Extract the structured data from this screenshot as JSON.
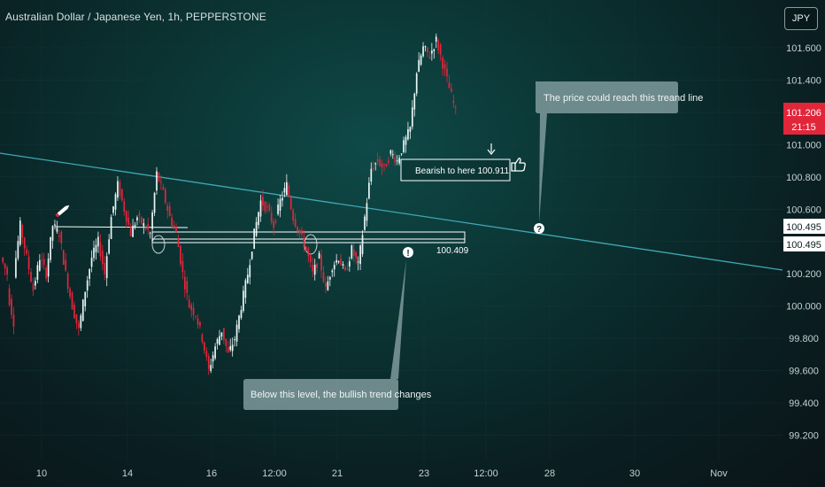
{
  "header": {
    "title": "Australian Dollar / Japanese Yen, 1h, PEPPERSTONE"
  },
  "currency_button": "JPY",
  "price_tag": {
    "price": "101.206",
    "countdown": "21:15",
    "color": "#e2263a"
  },
  "trendline_tags": [
    "100.495",
    "100.495"
  ],
  "annotations": {
    "target_label": "Bearish to here 100.911",
    "level_label": "100.409",
    "callout_top": "The price could reach this treand line",
    "callout_bottom": "Below this level, the bullish trend changes",
    "question_mark": "?",
    "info_mark": "!"
  },
  "colors": {
    "up": "#e8f4f4",
    "down": "#e2263a",
    "trendline": "#3fa8b4",
    "grid": "#1d3d40"
  },
  "icons": [
    "pencil-icon",
    "thumbs-up-icon",
    "down-arrow-icon",
    "info-icon",
    "question-icon"
  ],
  "chart_data": {
    "type": "candlestick",
    "y_axis": {
      "ticks": [
        "101.600",
        "101.400",
        "101.200",
        "101.000",
        "100.800",
        "100.600",
        "100.400",
        "100.200",
        "100.000",
        "99.800",
        "99.600",
        "99.400",
        "99.200"
      ],
      "ylim": [
        99.15,
        101.72
      ]
    },
    "x_axis": {
      "ticks": [
        "10",
        "14",
        "16",
        "12:00",
        "21",
        "23",
        "12:00",
        "28",
        "30",
        "Nov"
      ]
    },
    "last_price": 101.206,
    "trendline": {
      "value_at_tag": 100.495
    },
    "support_level": 100.409,
    "target_level": 100.911,
    "price_path": [
      [
        100.3,
        100.2
      ],
      [
        100.1,
        99.9
      ],
      [
        100.2,
        100.5
      ],
      [
        100.5,
        100.3
      ],
      [
        100.3,
        100.1
      ],
      [
        100.1,
        100.3
      ],
      [
        100.3,
        100.2
      ],
      [
        100.2,
        100.5
      ],
      [
        100.5,
        100.45
      ],
      [
        100.45,
        100.2
      ],
      [
        100.2,
        100.0
      ],
      [
        100.0,
        99.85
      ],
      [
        99.85,
        100.1
      ],
      [
        100.1,
        100.3
      ],
      [
        100.3,
        100.4
      ],
      [
        100.4,
        100.2
      ],
      [
        100.2,
        100.55
      ],
      [
        100.55,
        100.75
      ],
      [
        100.75,
        100.6
      ],
      [
        100.6,
        100.45
      ],
      [
        100.45,
        100.55
      ],
      [
        100.55,
        100.5
      ],
      [
        100.5,
        100.45
      ],
      [
        100.45,
        100.82
      ],
      [
        100.82,
        100.7
      ],
      [
        100.7,
        100.55
      ],
      [
        100.55,
        100.45
      ],
      [
        100.45,
        100.2
      ],
      [
        100.2,
        100.0
      ],
      [
        100.0,
        99.95
      ],
      [
        99.95,
        99.8
      ],
      [
        99.8,
        99.6
      ],
      [
        99.6,
        99.75
      ],
      [
        99.75,
        99.85
      ],
      [
        99.85,
        99.7
      ],
      [
        99.7,
        99.8
      ],
      [
        99.8,
        100.0
      ],
      [
        100.0,
        100.2
      ],
      [
        100.2,
        100.45
      ],
      [
        100.45,
        100.65
      ],
      [
        100.65,
        100.6
      ],
      [
        100.6,
        100.5
      ],
      [
        100.5,
        100.65
      ],
      [
        100.65,
        100.75
      ],
      [
        100.75,
        100.55
      ],
      [
        100.55,
        100.45
      ],
      [
        100.45,
        100.35
      ],
      [
        100.35,
        100.2
      ],
      [
        100.2,
        100.3
      ],
      [
        100.3,
        100.1
      ],
      [
        100.1,
        100.25
      ],
      [
        100.25,
        100.3
      ],
      [
        100.3,
        100.2
      ],
      [
        100.2,
        100.35
      ],
      [
        100.35,
        100.25
      ],
      [
        100.25,
        100.55
      ],
      [
        100.55,
        100.85
      ],
      [
        100.85,
        100.9
      ],
      [
        100.9,
        100.85
      ],
      [
        100.85,
        100.95
      ],
      [
        100.95,
        100.9
      ],
      [
        100.9,
        101.0
      ],
      [
        101.0,
        101.1
      ],
      [
        101.1,
        101.45
      ],
      [
        101.45,
        101.6
      ],
      [
        101.6,
        101.55
      ],
      [
        101.55,
        101.65
      ],
      [
        101.65,
        101.5
      ],
      [
        101.5,
        101.35
      ],
      [
        101.35,
        101.206
      ]
    ]
  }
}
